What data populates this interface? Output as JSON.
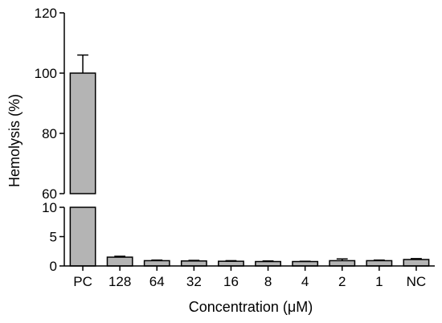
{
  "chart_data": {
    "type": "bar",
    "title": "",
    "xlabel": "Concentration (μM)",
    "ylabel": "Hemolysis (%)",
    "categories": [
      "PC",
      "128",
      "64",
      "32",
      "16",
      "8",
      "4",
      "2",
      "1",
      "NC"
    ],
    "values": [
      100,
      1.5,
      0.9,
      0.85,
      0.8,
      0.75,
      0.75,
      0.9,
      0.9,
      1.1
    ],
    "errors": [
      6,
      0.15,
      0.1,
      0.1,
      0.1,
      0.1,
      0.05,
      0.3,
      0.1,
      0.15
    ],
    "y_axis_break": {
      "lower_range": [
        0,
        10
      ],
      "upper_range": [
        60,
        120
      ]
    },
    "lower_ticks": [
      0,
      5,
      10
    ],
    "upper_ticks": [
      60,
      80,
      100,
      120
    ],
    "grid": false,
    "bar_color": "#b4b4b4"
  }
}
